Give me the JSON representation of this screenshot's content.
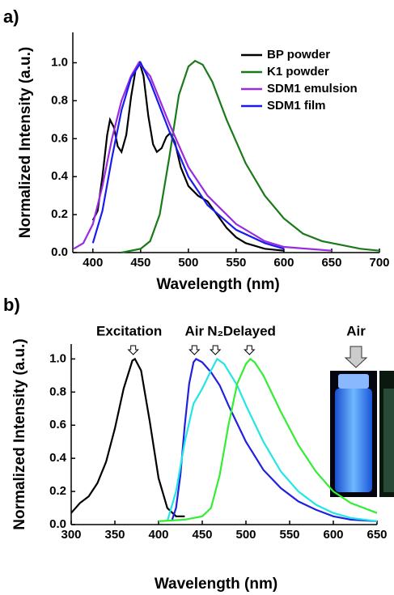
{
  "chart_data": [
    {
      "type": "line",
      "panel": "a)",
      "xlabel": "Wavelength (nm)",
      "ylabel": "Normalized Intensity (a.u.)",
      "xlim": [
        379,
        700
      ],
      "xticks": [
        400,
        450,
        500,
        550,
        600,
        650,
        700
      ],
      "ylim": [
        0,
        1.16
      ],
      "yticks": [
        {
          "value": 0,
          "label": "0.0"
        },
        {
          "value": 0.2,
          "label": "0.2"
        },
        {
          "value": 0.4,
          "label": "0.4"
        },
        {
          "value": 0.6,
          "label": "0.6"
        },
        {
          "value": 0.8,
          "label": "0.8"
        },
        {
          "value": 1,
          "label": "1.0"
        }
      ],
      "legend": "upper right",
      "series": [
        {
          "name": "BP powder",
          "color": "#000000",
          "x": [
            400,
            405,
            410,
            415,
            418,
            422,
            426,
            430,
            435,
            440,
            445,
            449,
            453,
            458,
            463,
            467,
            472,
            477,
            481,
            486,
            492,
            500,
            510,
            520,
            530,
            540,
            550,
            560,
            580,
            600
          ],
          "values": [
            0.17,
            0.22,
            0.4,
            0.62,
            0.7,
            0.66,
            0.56,
            0.53,
            0.62,
            0.82,
            0.97,
            1.0,
            0.93,
            0.72,
            0.57,
            0.53,
            0.55,
            0.61,
            0.63,
            0.58,
            0.45,
            0.35,
            0.3,
            0.27,
            0.2,
            0.13,
            0.08,
            0.05,
            0.02,
            0.01
          ]
        },
        {
          "name": "K1 powder",
          "color": "#1a7a1a",
          "x": [
            430,
            450,
            460,
            470,
            480,
            490,
            500,
            507,
            515,
            525,
            540,
            560,
            580,
            600,
            620,
            640,
            660,
            680,
            700
          ],
          "values": [
            0.0,
            0.02,
            0.06,
            0.2,
            0.5,
            0.83,
            0.98,
            1.01,
            0.99,
            0.9,
            0.7,
            0.47,
            0.3,
            0.18,
            0.1,
            0.06,
            0.04,
            0.02,
            0.01
          ]
        },
        {
          "name": "SDM1 emulsion",
          "color": "#9a2be2",
          "x": [
            380,
            390,
            400,
            410,
            420,
            430,
            440,
            448,
            460,
            480,
            500,
            520,
            550,
            580,
            600,
            650
          ],
          "values": [
            0.02,
            0.05,
            0.15,
            0.35,
            0.6,
            0.8,
            0.93,
            1.0,
            0.93,
            0.68,
            0.45,
            0.3,
            0.15,
            0.06,
            0.03,
            0.01
          ]
        },
        {
          "name": "SDM1 film",
          "color": "#1b1bf0",
          "x": [
            400,
            410,
            420,
            430,
            440,
            450,
            460,
            480,
            500,
            520,
            550,
            580,
            600
          ],
          "values": [
            0.05,
            0.22,
            0.5,
            0.75,
            0.92,
            1.0,
            0.9,
            0.64,
            0.4,
            0.25,
            0.12,
            0.05,
            0.02
          ]
        }
      ]
    },
    {
      "type": "line",
      "panel": "b)",
      "xlabel": "Wavelength (nm)",
      "ylabel": "Normalized Intensity (a.u.)",
      "xlim": [
        300,
        650
      ],
      "xticks": [
        300,
        350,
        400,
        450,
        500,
        550,
        600,
        650
      ],
      "ylim": [
        0,
        1.09
      ],
      "yticks": [
        {
          "value": 0,
          "label": "0.0"
        },
        {
          "value": 0.2,
          "label": "0.2"
        },
        {
          "value": 0.4,
          "label": "0.4"
        },
        {
          "value": 0.6,
          "label": "0.6"
        },
        {
          "value": 0.8,
          "label": "0.8"
        },
        {
          "value": 1,
          "label": "1.0"
        }
      ],
      "annotations": [
        {
          "text": "Excitation",
          "x": 371
        },
        {
          "text": "Air",
          "x": 441
        },
        {
          "text": "N₂",
          "x": 465
        },
        {
          "text": "Delayed",
          "x": 504
        }
      ],
      "photo_label": "Air",
      "series": [
        {
          "color": "#000000",
          "x": [
            300,
            310,
            320,
            330,
            340,
            350,
            360,
            370,
            373,
            380,
            390,
            400,
            410,
            420,
            430
          ],
          "values": [
            0.07,
            0.13,
            0.17,
            0.25,
            0.38,
            0.58,
            0.82,
            0.99,
            1.0,
            0.93,
            0.62,
            0.28,
            0.1,
            0.05,
            0.05
          ]
        },
        {
          "color": "#2020e0",
          "x": [
            415,
            420,
            425,
            430,
            435,
            440,
            443,
            450,
            460,
            470,
            480,
            500,
            520,
            540,
            560,
            580,
            600,
            620,
            650
          ],
          "values": [
            0.02,
            0.1,
            0.3,
            0.6,
            0.85,
            0.98,
            1.0,
            0.98,
            0.92,
            0.84,
            0.72,
            0.5,
            0.33,
            0.22,
            0.14,
            0.09,
            0.05,
            0.03,
            0.02
          ]
        },
        {
          "color": "#22e6e6",
          "x": [
            410,
            420,
            430,
            440,
            450,
            460,
            467,
            475,
            490,
            500,
            520,
            540,
            560,
            580,
            600,
            620,
            650
          ],
          "values": [
            0.02,
            0.2,
            0.5,
            0.73,
            0.82,
            0.93,
            1.0,
            0.97,
            0.84,
            0.72,
            0.5,
            0.32,
            0.2,
            0.12,
            0.07,
            0.04,
            0.02
          ]
        },
        {
          "color": "#33ee33",
          "x": [
            400,
            430,
            450,
            460,
            470,
            480,
            490,
            500,
            505,
            510,
            520,
            540,
            560,
            580,
            600,
            620,
            650
          ],
          "values": [
            0.02,
            0.03,
            0.05,
            0.1,
            0.3,
            0.6,
            0.85,
            0.97,
            1.0,
            0.98,
            0.9,
            0.68,
            0.48,
            0.32,
            0.2,
            0.13,
            0.07
          ]
        }
      ]
    }
  ]
}
